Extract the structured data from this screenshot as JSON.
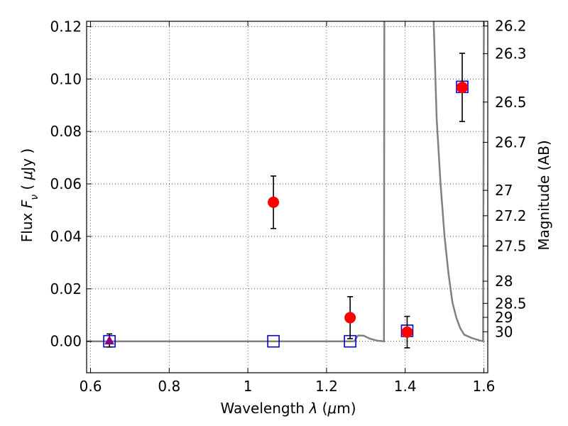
{
  "chart_data": {
    "type": "scatter",
    "xlabel": "Wavelength  λ (μm)",
    "ylabel": "Flux  F_ν  ( μJy )",
    "ylabel_right": "Magnitude (AB)",
    "xlim": [
      0.59,
      1.61
    ],
    "ylim": [
      -0.012,
      0.122
    ],
    "grid": true,
    "x_ticks": [
      {
        "value": 0.6,
        "label": "0.6"
      },
      {
        "value": 0.8,
        "label": "0.8"
      },
      {
        "value": 1.0,
        "label": "1"
      },
      {
        "value": 1.2,
        "label": "1.2"
      },
      {
        "value": 1.4,
        "label": "1.4"
      },
      {
        "value": 1.6,
        "label": "1.6"
      }
    ],
    "y_ticks": [
      {
        "value": 0.0,
        "label": "0.00"
      },
      {
        "value": 0.02,
        "label": "0.02"
      },
      {
        "value": 0.04,
        "label": "0.04"
      },
      {
        "value": 0.06,
        "label": "0.06"
      },
      {
        "value": 0.08,
        "label": "0.08"
      },
      {
        "value": 0.1,
        "label": "0.10"
      },
      {
        "value": 0.12,
        "label": "0.12"
      }
    ],
    "mag_ticks": [
      {
        "value": 26.2,
        "label": "26.2"
      },
      {
        "value": 26.3,
        "label": "26.3"
      },
      {
        "value": 26.5,
        "label": "26.5"
      },
      {
        "value": 26.7,
        "label": "26.7"
      },
      {
        "value": 27.0,
        "label": "27"
      },
      {
        "value": 27.2,
        "label": "27.2"
      },
      {
        "value": 27.5,
        "label": "27.5"
      },
      {
        "value": 28.0,
        "label": "28"
      },
      {
        "value": 28.5,
        "label": "28.5"
      },
      {
        "value": 29.0,
        "label": "29"
      },
      {
        "value": 30.0,
        "label": "30"
      }
    ],
    "series": [
      {
        "marker": "circle",
        "color": "#ff0000",
        "points": [
          {
            "x": 1.065,
            "y": 0.053,
            "err": 0.01
          },
          {
            "x": 1.26,
            "y": 0.009,
            "err": 0.008
          },
          {
            "x": 1.405,
            "y": 0.0035,
            "err": 0.006
          },
          {
            "x": 1.545,
            "y": 0.0968,
            "err": 0.013
          }
        ]
      },
      {
        "marker": "triangle",
        "color": "#800080",
        "points": [
          {
            "x": 0.648,
            "y": 0.0003,
            "err": 0.0025
          }
        ]
      },
      {
        "marker": "open-square",
        "color": "#0000cc",
        "points": [
          {
            "x": 0.648,
            "y": 0.0
          },
          {
            "x": 1.065,
            "y": 0.0
          },
          {
            "x": 1.26,
            "y": 0.0
          },
          {
            "x": 1.405,
            "y": 0.004
          },
          {
            "x": 1.545,
            "y": 0.097
          }
        ]
      },
      {
        "marker": "line",
        "color": "#808080",
        "points": [
          {
            "x": 0.59,
            "y": 0.0
          },
          {
            "x": 1.27,
            "y": 0.0
          },
          {
            "x": 1.28,
            "y": 0.0022
          },
          {
            "x": 1.295,
            "y": 0.0021
          },
          {
            "x": 1.31,
            "y": 0.001
          },
          {
            "x": 1.33,
            "y": 0.0002
          },
          {
            "x": 1.346,
            "y": 0.0
          },
          {
            "x": 1.347,
            "y": 0.125
          }
        ]
      },
      {
        "marker": "line",
        "color": "#808080",
        "points": [
          {
            "x": 1.4725,
            "y": 0.125
          },
          {
            "x": 1.48,
            "y": 0.085
          },
          {
            "x": 1.49,
            "y": 0.06
          },
          {
            "x": 1.5,
            "y": 0.04
          },
          {
            "x": 1.51,
            "y": 0.026
          },
          {
            "x": 1.52,
            "y": 0.015
          },
          {
            "x": 1.53,
            "y": 0.009
          },
          {
            "x": 1.54,
            "y": 0.005
          },
          {
            "x": 1.55,
            "y": 0.0025
          },
          {
            "x": 1.57,
            "y": 0.0012
          },
          {
            "x": 1.59,
            "y": 0.0003
          },
          {
            "x": 1.598,
            "y": 0.0
          },
          {
            "x": 1.6,
            "y": 0.125
          }
        ]
      }
    ]
  }
}
